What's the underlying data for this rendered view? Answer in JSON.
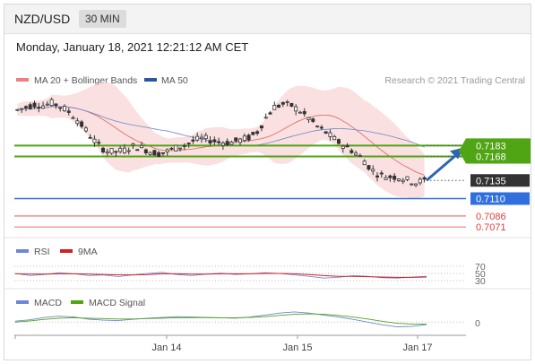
{
  "header": {
    "pair": "NZD/USD",
    "timeframe": "30 MIN"
  },
  "datetime": "Monday, January 18, 2021 12:21:12 AM CET",
  "credit": "Research © 2021 Trading Central",
  "colors": {
    "resistance": "#4fa514",
    "current": "#333333",
    "pivot": "#2f6fde",
    "support": "#e03c3c",
    "bollinger": "#f8d5d5",
    "ma20": "#e06060",
    "ma50": "#6f86c8",
    "rsi": "#6f86d8",
    "rsi_ma": "#d32020",
    "macd": "#6f86d8",
    "macd_signal": "#4fa514",
    "arrow": "#2f64b4"
  },
  "chart_data": [
    {
      "type": "candlestick",
      "legend": [
        {
          "name": "MA 20 + Bollinger Bands",
          "color": "#f08080"
        },
        {
          "name": "MA 50",
          "color": "#2c579f"
        }
      ],
      "x_tick_labels": [
        "Jan 14",
        "Jan 15",
        "Jan 17"
      ],
      "levels": [
        {
          "label": "0.7183",
          "value": 0.7183,
          "kind": "resistance"
        },
        {
          "label": "0.7168",
          "value": 0.7168,
          "kind": "resistance"
        },
        {
          "label": "0.7135",
          "value": 0.7135,
          "kind": "current"
        },
        {
          "label": "0.7110",
          "value": 0.711,
          "kind": "pivot"
        },
        {
          "label": "0.7086",
          "value": 0.7086,
          "kind": "support"
        },
        {
          "label": "0.7071",
          "value": 0.7071,
          "kind": "support"
        }
      ],
      "price_path": [
        0.7232,
        0.7236,
        0.724,
        0.7238,
        0.7242,
        0.7236,
        0.7228,
        0.7215,
        0.72,
        0.7185,
        0.7176,
        0.7174,
        0.7176,
        0.7182,
        0.718,
        0.7175,
        0.7172,
        0.7175,
        0.718,
        0.7184,
        0.719,
        0.7193,
        0.719,
        0.7188,
        0.7187,
        0.719,
        0.7193,
        0.72,
        0.722,
        0.7236,
        0.724,
        0.7238,
        0.723,
        0.722,
        0.7208,
        0.72,
        0.719,
        0.7182,
        0.7175,
        0.7165,
        0.715,
        0.7142,
        0.714,
        0.714,
        0.7136,
        0.7132,
        0.7135
      ],
      "y_range": [
        0.706,
        0.726
      ]
    },
    {
      "type": "line",
      "legend": [
        {
          "name": "RSI",
          "color": "#6f86d8"
        },
        {
          "name": "9MA",
          "color": "#d32020"
        }
      ],
      "y_tick_labels": [
        "70",
        "50",
        "30"
      ],
      "series": [
        {
          "name": "RSI",
          "values": [
            50,
            44,
            47,
            52,
            49,
            44,
            46,
            41,
            46,
            50,
            53,
            47,
            44,
            48,
            51,
            47,
            49,
            52,
            50,
            46,
            42,
            37,
            39,
            44,
            42,
            38,
            37,
            40,
            42
          ]
        },
        {
          "name": "9MA",
          "values": [
            49,
            48,
            48,
            49,
            49,
            48,
            47,
            46,
            46,
            47,
            49,
            49,
            48,
            48,
            49,
            49,
            49,
            50,
            50,
            49,
            47,
            44,
            42,
            42,
            41,
            40,
            39,
            39,
            40
          ]
        }
      ],
      "y_range": [
        20,
        80
      ]
    },
    {
      "type": "line",
      "legend": [
        {
          "name": "MACD",
          "color": "#6f86d8"
        },
        {
          "name": "MACD Signal",
          "color": "#4fa514"
        }
      ],
      "y_tick_labels": [
        "0"
      ],
      "series": [
        {
          "name": "MACD",
          "values": [
            0.5,
            1.2,
            2.4,
            3.0,
            2.6,
            1.5,
            1.0,
            0.8,
            1.4,
            2.0,
            2.4,
            2.8,
            2.6,
            2.4,
            2.2,
            2.0,
            2.6,
            3.6,
            4.6,
            5.2,
            4.6,
            3.6,
            2.6,
            1.4,
            0.0,
            -1.4,
            -2.4,
            -2.2,
            -1.2
          ]
        },
        {
          "name": "MACD Signal",
          "values": [
            0.0,
            0.6,
            1.4,
            2.0,
            2.2,
            2.0,
            1.8,
            1.6,
            1.6,
            1.8,
            2.0,
            2.2,
            2.3,
            2.3,
            2.2,
            2.2,
            2.4,
            2.8,
            3.4,
            4.0,
            4.2,
            4.0,
            3.4,
            2.6,
            1.6,
            0.4,
            -0.6,
            -1.0,
            -1.0
          ]
        }
      ],
      "y_range": [
        -4,
        7
      ]
    }
  ]
}
